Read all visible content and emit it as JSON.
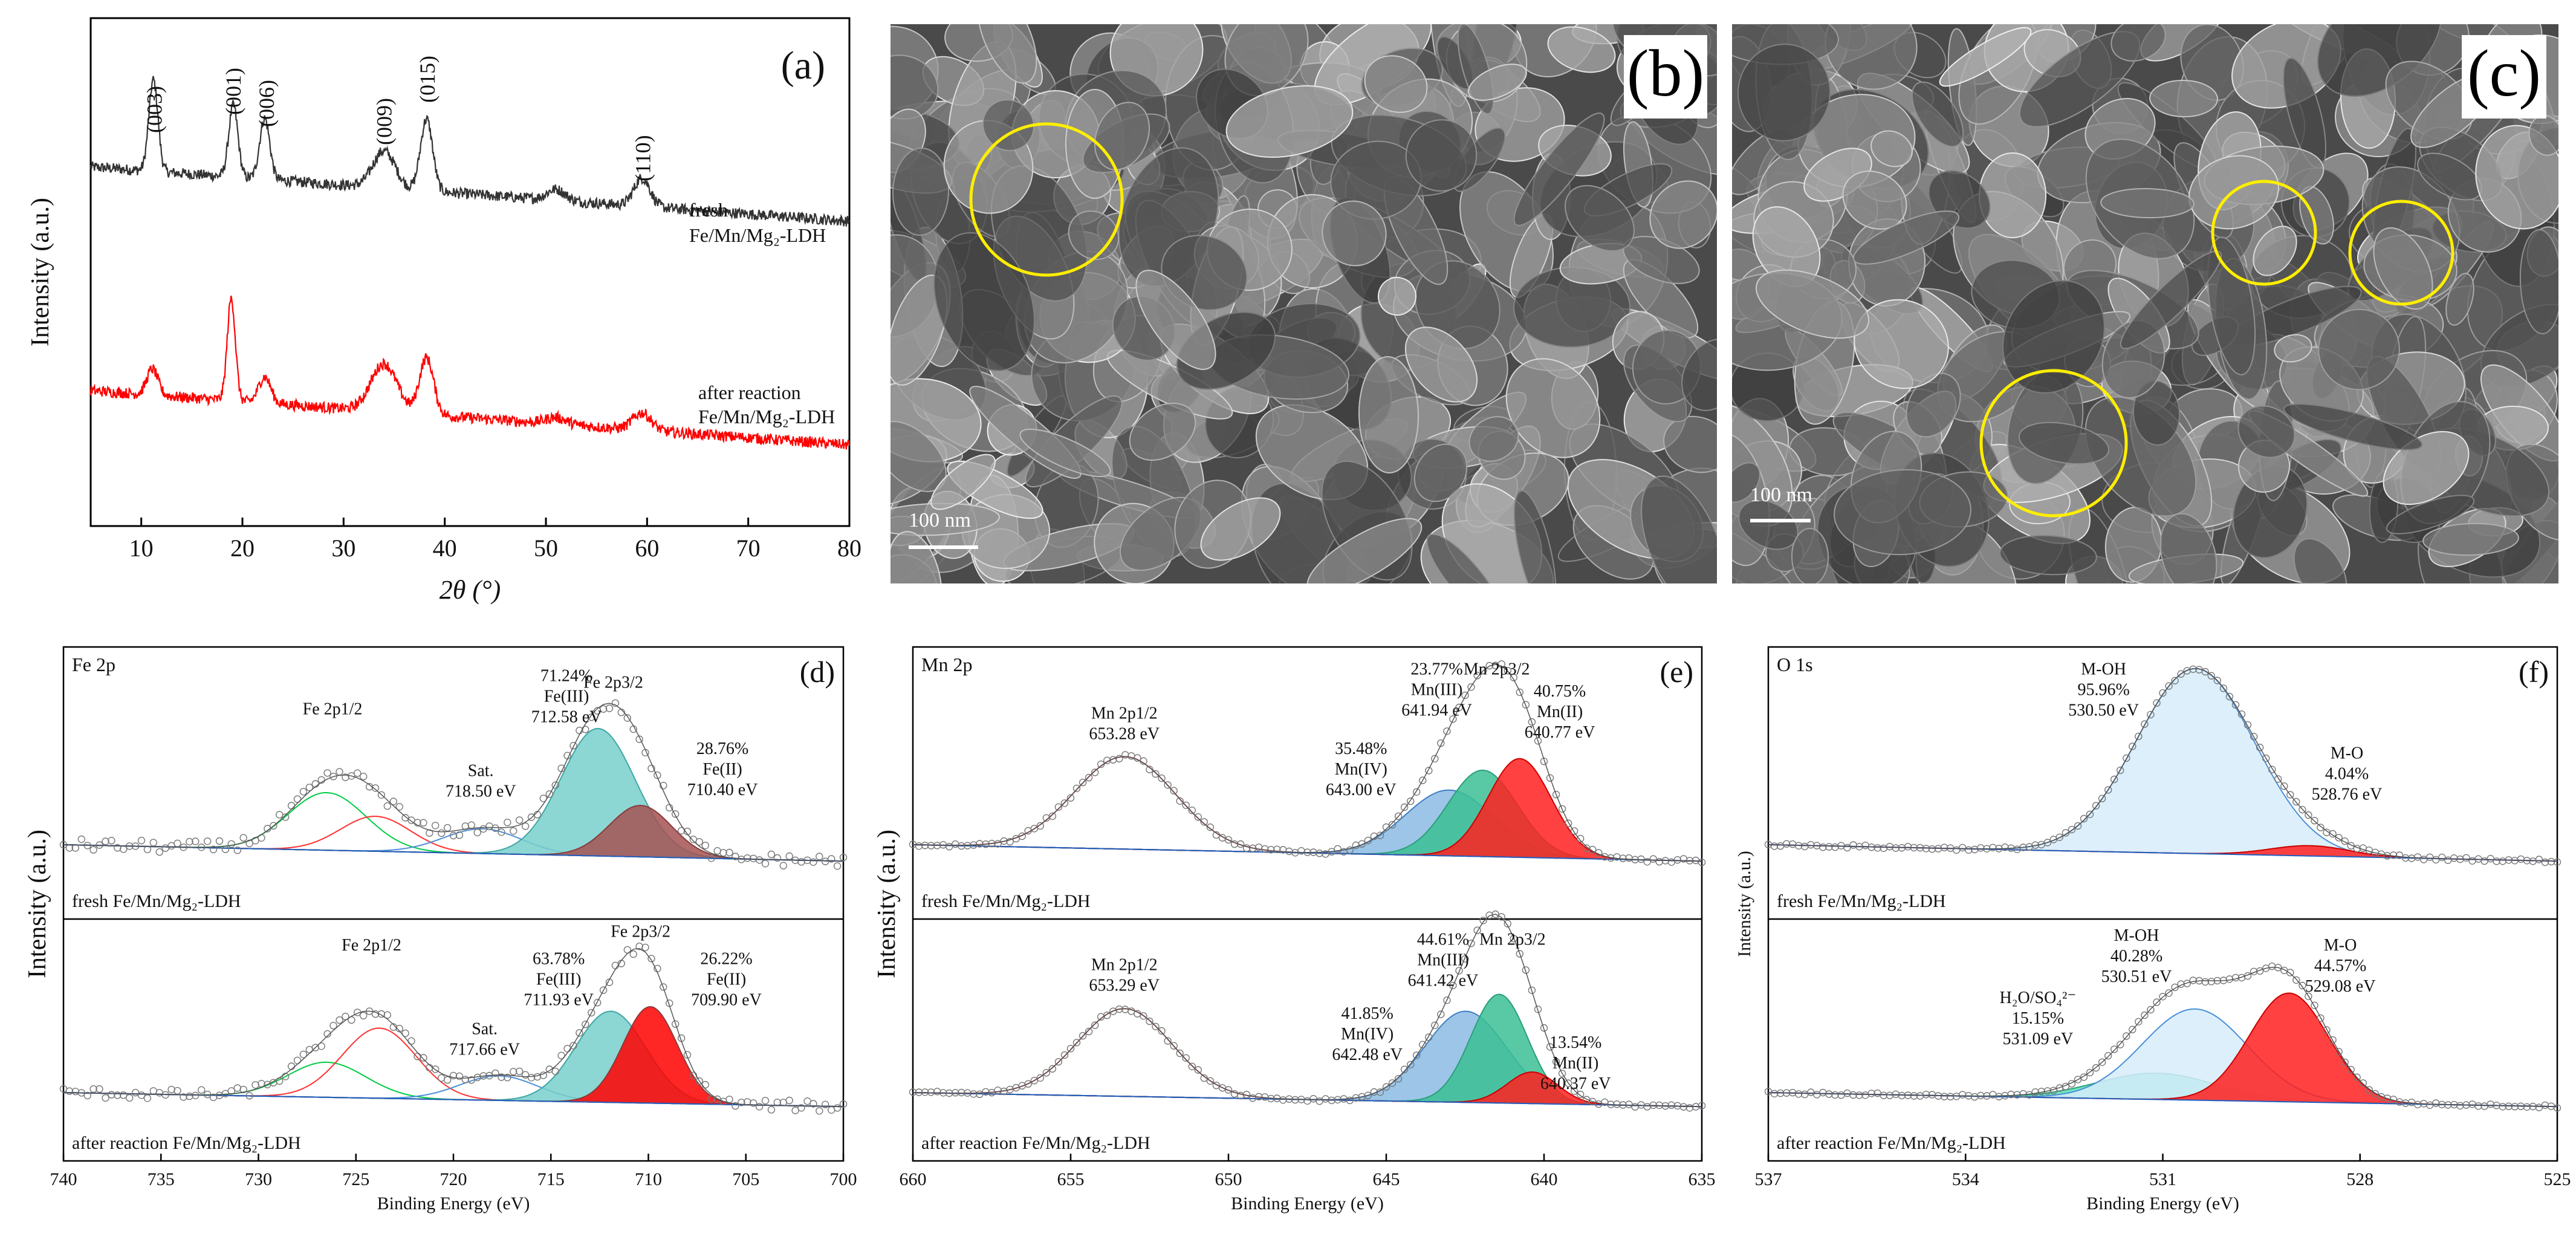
{
  "chart_data": [
    {
      "id": "a",
      "type": "line",
      "panel_label": "(a)",
      "xlabel": "2θ (°)",
      "ylabel": "Intensity (a.u.)",
      "xlim": [
        5,
        80
      ],
      "xticks": [
        "10",
        "20",
        "30",
        "40",
        "50",
        "60",
        "70",
        "80"
      ],
      "peak_labels": [
        {
          "text": "(003)",
          "x": 11.3
        },
        {
          "text": "(001)",
          "x": 19.1
        },
        {
          "text": "(006)",
          "x": 22.4
        },
        {
          "text": "(009)",
          "x": 34.0
        },
        {
          "text": "(015)",
          "x": 38.3
        },
        {
          "text": "(110)",
          "x": 59.6
        }
      ],
      "series": [
        {
          "name_line1": "fresh",
          "name_line2": "Fe/Mn/Mg₂-LDH",
          "color": "#333333",
          "peaks": [
            [
              11.2,
              0.42,
              0.45
            ],
            [
              19.1,
              0.33,
              0.45
            ],
            [
              22.2,
              0.28,
              0.5
            ],
            [
              34.0,
              0.17,
              1.1
            ],
            [
              38.2,
              0.33,
              0.6
            ],
            [
              51.0,
              0.05,
              0.9
            ],
            [
              59.5,
              0.13,
              0.8
            ]
          ],
          "baseline": [
            0.43,
            0.0
          ],
          "base_end": 0.37
        },
        {
          "name_line1": "after reaction",
          "name_line2": "Fe/Mn/Mg₂-LDH",
          "color": "#ff0000",
          "peaks": [
            [
              11.1,
              0.12,
              0.55
            ],
            [
              18.9,
              0.47,
              0.4
            ],
            [
              22.2,
              0.12,
              0.6
            ],
            [
              34.0,
              0.22,
              1.3
            ],
            [
              38.2,
              0.26,
              0.7
            ],
            [
              51.0,
              0.03,
              1.0
            ],
            [
              59.5,
              0.08,
              0.9
            ]
          ],
          "baseline": [
            0.0,
            0.0
          ]
        }
      ]
    },
    {
      "id": "d",
      "type": "line",
      "panel_label": "(d)",
      "element_label": "Fe 2p",
      "xlabel": "Binding Energy (eV)",
      "ylabel": "Intensity (a.u.)",
      "xlim": [
        740,
        700
      ],
      "xticks": [
        "740",
        "735",
        "730",
        "725",
        "720",
        "715",
        "710",
        "705",
        "700"
      ],
      "subpanels": [
        {
          "sample_label": "fresh  Fe/Mn/Mg₂-LDH",
          "components": [
            {
              "center": 726.5,
              "height": 0.28,
              "width": 2.0,
              "color": "#00cc44",
              "fill": "none"
            },
            {
              "center": 724.0,
              "height": 0.17,
              "width": 1.8,
              "color": "#ff3030",
              "fill": "none"
            },
            {
              "center": 718.5,
              "height": 0.12,
              "width": 2.0,
              "color": "#4a8fd8",
              "fill": "none"
            },
            {
              "center": 712.58,
              "height": 0.62,
              "width": 1.9,
              "color": "#3fa7a4",
              "fill": "#78cfcb"
            },
            {
              "center": 710.4,
              "height": 0.25,
              "width": 1.6,
              "color": "#8b3a3a",
              "fill": "#a55252"
            }
          ],
          "annotations": [
            {
              "lines": [
                "Fe 2p1/2"
              ],
              "x": 726.2,
              "y": 0.9
            },
            {
              "lines": [
                "Sat.",
                "718.50 eV"
              ],
              "x": 718.6,
              "y": 0.62
            },
            {
              "lines": [
                "71.24%",
                "Fe(III)",
                "712.58 eV"
              ],
              "x": 714.2,
              "y": 1.05
            },
            {
              "lines": [
                "Fe 2p3/2"
              ],
              "x": 711.8,
              "y": 1.02
            },
            {
              "lines": [
                "28.76%",
                "Fe(II)",
                "710.40 eV"
              ],
              "x": 706.2,
              "y": 0.72
            }
          ]
        },
        {
          "sample_label": "after reaction  Fe/Mn/Mg₂-LDH",
          "components": [
            {
              "center": 726.5,
              "height": 0.2,
              "width": 2.0,
              "color": "#00cc44",
              "fill": "none"
            },
            {
              "center": 723.8,
              "height": 0.4,
              "width": 1.9,
              "color": "#ff3030",
              "fill": "none"
            },
            {
              "center": 717.66,
              "height": 0.14,
              "width": 2.0,
              "color": "#4a8fd8",
              "fill": "none"
            },
            {
              "center": 711.93,
              "height": 0.52,
              "width": 1.8,
              "color": "#3fa7a4",
              "fill": "#78cfcb"
            },
            {
              "center": 709.9,
              "height": 0.55,
              "width": 1.4,
              "color": "#8b3a3a",
              "fill": "#ff0000"
            }
          ],
          "annotations": [
            {
              "lines": [
                "Fe 2p1/2"
              ],
              "x": 724.2,
              "y": 1.05
            },
            {
              "lines": [
                "Sat.",
                "717.66 eV"
              ],
              "x": 718.4,
              "y": 0.62
            },
            {
              "lines": [
                "63.78%",
                "Fe(III)",
                "711.93 eV"
              ],
              "x": 714.6,
              "y": 0.98
            },
            {
              "lines": [
                "Fe 2p3/2"
              ],
              "x": 710.4,
              "y": 1.12
            },
            {
              "lines": [
                "26.22%",
                "Fe(II)",
                "709.90 eV"
              ],
              "x": 706.0,
              "y": 0.98
            }
          ]
        }
      ]
    },
    {
      "id": "e",
      "type": "line",
      "panel_label": "(e)",
      "element_label": "Mn 2p",
      "xlabel": "Binding Energy (eV)",
      "ylabel": "Intensity (a.u.)",
      "xlim": [
        660,
        635
      ],
      "xticks": [
        "660",
        "655",
        "650",
        "645",
        "640",
        "635"
      ],
      "subpanels": [
        {
          "sample_label": "fresh  Fe/Mn/Mg₂-LDH",
          "components": [
            {
              "center": 653.28,
              "height": 0.45,
              "width": 1.6,
              "color": "#cc4444",
              "fill": "none"
            },
            {
              "center": 643.0,
              "height": 0.32,
              "width": 1.4,
              "color": "#3d7fc4",
              "fill": "#8bbbe3"
            },
            {
              "center": 641.94,
              "height": 0.42,
              "width": 1.1,
              "color": "#2a9f7a",
              "fill": "#3bbf94"
            },
            {
              "center": 640.77,
              "height": 0.48,
              "width": 1.0,
              "color": "#cc0000",
              "fill": "#ff2020"
            }
          ],
          "annotations": [
            {
              "lines": [
                "Mn 2p1/2",
                "653.28 eV"
              ],
              "x": 653.3,
              "y": 0.88
            },
            {
              "lines": [
                "35.48%",
                "Mn(IV)",
                "643.00 eV"
              ],
              "x": 645.8,
              "y": 0.72
            },
            {
              "lines": [
                "23.77%",
                "Mn(III)",
                "641.94 eV"
              ],
              "x": 643.4,
              "y": 1.08
            },
            {
              "lines": [
                "Mn 2p3/2"
              ],
              "x": 641.5,
              "y": 1.08
            },
            {
              "lines": [
                "40.75%",
                "Mn(II)",
                "640.77 eV"
              ],
              "x": 639.5,
              "y": 0.98
            }
          ]
        },
        {
          "sample_label": "after reaction  Fe/Mn/Mg₂-LDH",
          "components": [
            {
              "center": 653.29,
              "height": 0.5,
              "width": 1.5,
              "color": "#cc4444",
              "fill": "none"
            },
            {
              "center": 642.48,
              "height": 0.52,
              "width": 1.3,
              "color": "#3d7fc4",
              "fill": "#8bbbe3"
            },
            {
              "center": 641.42,
              "height": 0.62,
              "width": 0.9,
              "color": "#2a9f7a",
              "fill": "#3bbf94"
            },
            {
              "center": 640.37,
              "height": 0.18,
              "width": 0.8,
              "color": "#cc0000",
              "fill": "#ff2020"
            }
          ],
          "annotations": [
            {
              "lines": [
                "Mn 2p1/2",
                "653.29 eV"
              ],
              "x": 653.3,
              "y": 0.95
            },
            {
              "lines": [
                "41.85%",
                "Mn(IV)",
                "642.48 eV"
              ],
              "x": 645.6,
              "y": 0.7
            },
            {
              "lines": [
                "44.61%",
                "Mn(III)",
                "641.42 eV"
              ],
              "x": 643.2,
              "y": 1.08
            },
            {
              "lines": [
                "Mn 2p3/2"
              ],
              "x": 641.0,
              "y": 1.08
            },
            {
              "lines": [
                "13.54%",
                "Mn(II)",
                "640.37 eV"
              ],
              "x": 639.0,
              "y": 0.55
            }
          ]
        }
      ]
    },
    {
      "id": "f",
      "type": "line",
      "panel_label": "(f)",
      "element_label": "O 1s",
      "xlabel": "Binding Energy (eV)",
      "ylabel": "Intensity (a.u.)",
      "xlim": [
        537,
        525
      ],
      "xticks": [
        "537",
        "534",
        "531",
        "528",
        "525"
      ],
      "subpanels": [
        {
          "sample_label": "fresh  Fe/Mn/Mg₂-LDH",
          "components": [
            {
              "center": 530.5,
              "height": 0.9,
              "width": 0.9,
              "color": "#4a8fd8",
              "fill": "#d6ecfa"
            },
            {
              "center": 528.76,
              "height": 0.05,
              "width": 0.6,
              "color": "#cc0000",
              "fill": "#ff2020"
            }
          ],
          "annotations": [
            {
              "lines": [
                "M-OH",
                "95.96%",
                "530.50 eV"
              ],
              "x": 531.9,
              "y": 1.08
            },
            {
              "lines": [
                "M-O",
                "4.04%",
                "528.76 eV"
              ],
              "x": 528.2,
              "y": 0.7
            }
          ]
        },
        {
          "sample_label": "after reaction  Fe/Mn/Mg₂-LDH",
          "components": [
            {
              "center": 531.09,
              "height": 0.15,
              "width": 0.9,
              "color": "#2a9f7a",
              "fill": "#55e0b5"
            },
            {
              "center": 530.51,
              "height": 0.52,
              "width": 0.8,
              "color": "#4a8fd8",
              "fill": "#d6ecfa"
            },
            {
              "center": 529.08,
              "height": 0.62,
              "width": 0.6,
              "color": "#cc0000",
              "fill": "#ff2020"
            }
          ],
          "annotations": [
            {
              "lines": [
                "H₂O/SO₄²⁻",
                "15.15%",
                "531.09 eV"
              ],
              "x": 532.9,
              "y": 0.78
            },
            {
              "lines": [
                "M-OH",
                "40.28%",
                "530.51 eV"
              ],
              "x": 531.4,
              "y": 1.1
            },
            {
              "lines": [
                "M-O",
                "44.57%",
                "529.08 eV"
              ],
              "x": 528.3,
              "y": 1.05
            }
          ]
        }
      ]
    }
  ],
  "sem_images": [
    {
      "id": "b",
      "panel_label": "(b)",
      "scale_label": "100 nm"
    },
    {
      "id": "c",
      "panel_label": "(c)",
      "scale_label": "100 nm"
    }
  ]
}
